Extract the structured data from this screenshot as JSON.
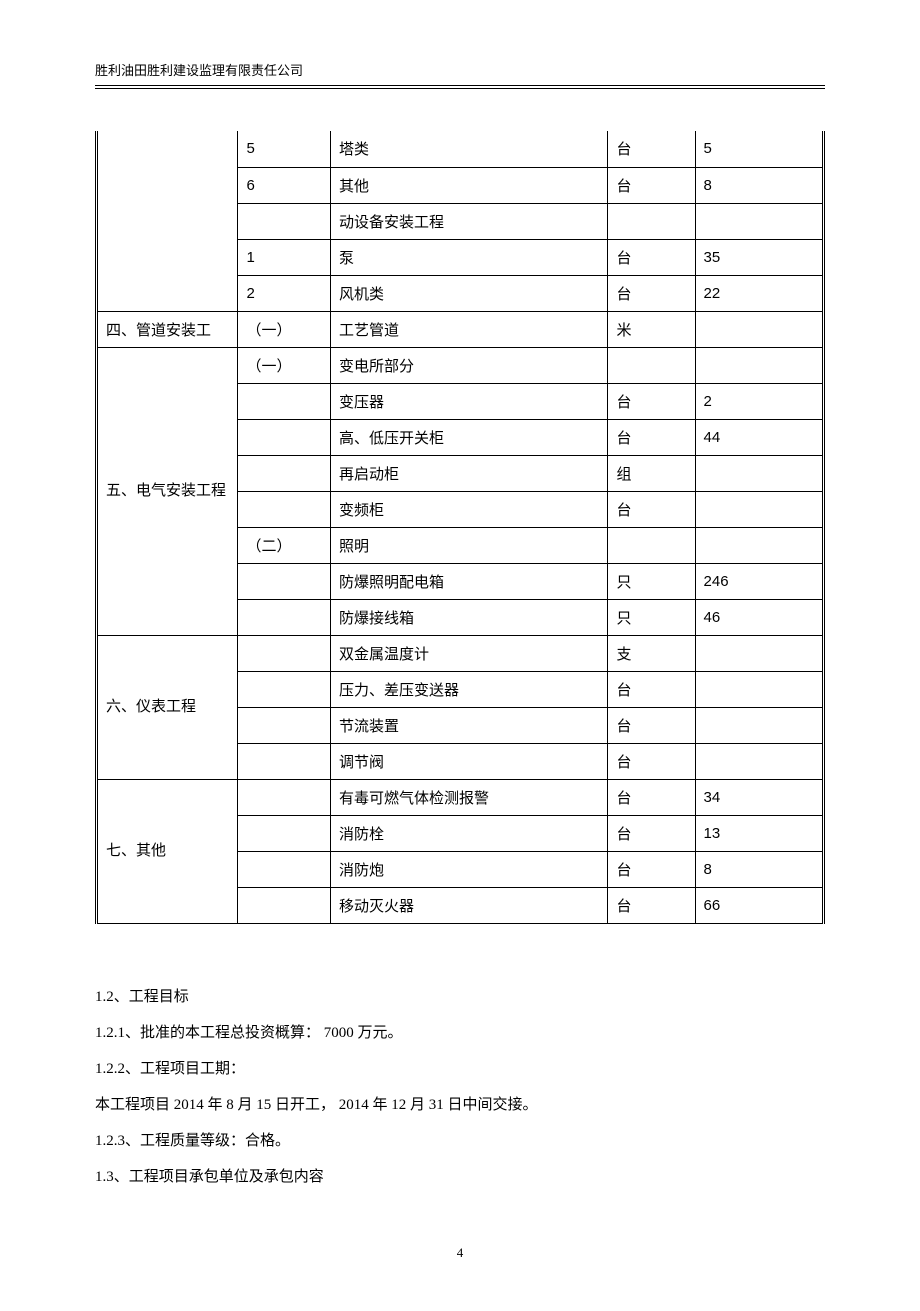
{
  "header": {
    "company": "胜利油田胜利建设监理有限责任公司"
  },
  "table": {
    "rows": [
      {
        "cells": [
          "",
          "5",
          "塔类",
          "台",
          "5"
        ],
        "group_start": false,
        "group_span": 5
      },
      {
        "cells": [
          null,
          "6",
          "其他",
          "台",
          "8"
        ]
      },
      {
        "cells": [
          null,
          "",
          "动设备安装工程",
          "",
          ""
        ]
      },
      {
        "cells": [
          null,
          "1",
          " 泵",
          "台",
          "35"
        ]
      },
      {
        "cells": [
          null,
          "2",
          "风机类",
          "台",
          "  22"
        ]
      },
      {
        "cells": [
          "四、管道安装工",
          "（一）",
          "工艺管道",
          "米",
          ""
        ],
        "single": true
      },
      {
        "cells": [
          "五、电气安装工程",
          "（一）",
          "变电所部分",
          "",
          ""
        ],
        "group_start": true,
        "group_span": 8
      },
      {
        "cells": [
          null,
          "",
          "变压器",
          "台",
          "2"
        ]
      },
      {
        "cells": [
          null,
          "",
          "高、低压开关柜",
          "台",
          "44"
        ]
      },
      {
        "cells": [
          null,
          "",
          "再启动柜",
          "组",
          ""
        ]
      },
      {
        "cells": [
          null,
          "",
          "变频柜",
          "台",
          ""
        ]
      },
      {
        "cells": [
          null,
          "（二）",
          "照明",
          "",
          ""
        ]
      },
      {
        "cells": [
          null,
          "",
          "防爆照明配电箱",
          "只",
          "246"
        ]
      },
      {
        "cells": [
          null,
          "",
          "防爆接线箱",
          "只",
          "46"
        ]
      },
      {
        "cells": [
          "六、仪表工程",
          "",
          "双金属温度计",
          "支",
          ""
        ],
        "group_start": true,
        "group_span": 4
      },
      {
        "cells": [
          null,
          "",
          "压力、差压变送器",
          "台",
          ""
        ]
      },
      {
        "cells": [
          null,
          "",
          "节流装置",
          "台",
          ""
        ]
      },
      {
        "cells": [
          null,
          "",
          "调节阀",
          "台",
          ""
        ]
      },
      {
        "cells": [
          "七、其他",
          "",
          "有毒可燃气体检测报警",
          "台",
          "34"
        ],
        "group_start": true,
        "group_span": 4
      },
      {
        "cells": [
          null,
          "",
          "消防栓",
          "台",
          "13"
        ]
      },
      {
        "cells": [
          null,
          "",
          "消防炮",
          "台",
          "8"
        ]
      },
      {
        "cells": [
          null,
          "",
          "移动灭火器",
          "台",
          "66"
        ]
      }
    ]
  },
  "body": {
    "p1": "1.2、工程目标",
    "p2": "1.2.1、批准的本工程总投资概算：   7000 万元。",
    "p3": "1.2.2、工程项目工期：",
    "p4": "本工程项目  2014 年 8 月 15 日开工， 2014 年 12 月 31 日中间交接。",
    "p5": "1.2.3、工程质量等级：合格。",
    "p6": "1.3、工程项目承包单位及承包内容"
  },
  "footer": {
    "page": "4"
  }
}
